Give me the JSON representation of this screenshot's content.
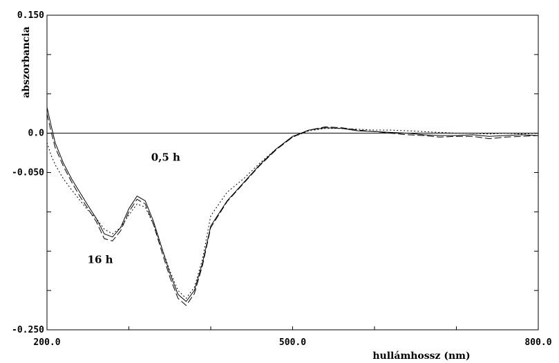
{
  "chart_data": {
    "type": "line",
    "xlabel": "hullámhossz (nm)",
    "ylabel": "abszorbancia",
    "xlim": [
      200,
      800
    ],
    "ylim": [
      -0.25,
      0.15
    ],
    "grid": false,
    "x_tick_labels": [
      {
        "value": 200,
        "label": "200.0"
      },
      {
        "value": 500,
        "label": "500.0"
      },
      {
        "value": 800,
        "label": "800.0"
      }
    ],
    "y_tick_labels": [
      {
        "value": 0.15,
        "label": "0.150"
      },
      {
        "value": 0.0,
        "label": "0.0"
      },
      {
        "value": -0.05,
        "label": "-0.050"
      },
      {
        "value": -0.25,
        "label": "-0.250"
      }
    ],
    "annotations": [
      {
        "text": "0,5 h",
        "x": 345,
        "y": -0.035
      },
      {
        "text": "16 h",
        "x": 265,
        "y": -0.165
      }
    ],
    "series": [
      {
        "style": "dotted",
        "x": [
          200,
          205,
          210,
          220,
          230,
          240,
          250,
          260,
          270,
          280,
          290,
          300,
          310,
          320,
          330,
          340,
          350,
          360,
          370,
          380,
          390,
          400,
          420,
          440,
          460,
          480,
          500,
          520,
          540,
          560,
          580,
          600,
          620,
          640,
          660,
          680,
          700,
          720,
          740,
          760,
          780,
          800
        ],
        "y": [
          -0.012,
          -0.028,
          -0.04,
          -0.058,
          -0.072,
          -0.085,
          -0.098,
          -0.108,
          -0.122,
          -0.128,
          -0.12,
          -0.104,
          -0.09,
          -0.094,
          -0.116,
          -0.145,
          -0.175,
          -0.2,
          -0.21,
          -0.196,
          -0.16,
          -0.105,
          -0.075,
          -0.058,
          -0.038,
          -0.02,
          -0.005,
          0.003,
          0.006,
          0.006,
          0.005,
          0.004,
          0.004,
          0.003,
          0.002,
          0.001,
          0.0,
          0.0,
          -0.001,
          0.0,
          -0.001,
          0.0
        ]
      },
      {
        "style": "solid",
        "x": [
          200,
          205,
          210,
          220,
          230,
          240,
          250,
          260,
          270,
          280,
          290,
          300,
          310,
          320,
          330,
          340,
          350,
          360,
          370,
          380,
          390,
          400,
          420,
          440,
          460,
          480,
          500,
          520,
          540,
          560,
          580,
          600,
          620,
          640,
          660,
          680,
          700,
          720,
          740,
          760,
          780,
          800
        ],
        "y": [
          0.033,
          0.01,
          -0.012,
          -0.038,
          -0.058,
          -0.075,
          -0.092,
          -0.108,
          -0.128,
          -0.132,
          -0.12,
          -0.096,
          -0.08,
          -0.086,
          -0.112,
          -0.145,
          -0.178,
          -0.205,
          -0.214,
          -0.2,
          -0.165,
          -0.118,
          -0.086,
          -0.063,
          -0.04,
          -0.02,
          -0.004,
          0.004,
          0.007,
          0.006,
          0.003,
          0.002,
          0.001,
          0.0,
          -0.002,
          -0.003,
          -0.003,
          -0.002,
          -0.004,
          -0.003,
          -0.002,
          -0.003
        ]
      },
      {
        "style": "dashed",
        "x": [
          200,
          205,
          210,
          220,
          230,
          240,
          250,
          260,
          270,
          280,
          290,
          300,
          310,
          320,
          330,
          340,
          350,
          360,
          370,
          380,
          390,
          400,
          420,
          440,
          460,
          480,
          500,
          520,
          540,
          560,
          580,
          600,
          620,
          640,
          660,
          680,
          700,
          720,
          740,
          760,
          780,
          800
        ],
        "y": [
          0.025,
          0.002,
          -0.018,
          -0.042,
          -0.062,
          -0.08,
          -0.096,
          -0.112,
          -0.134,
          -0.137,
          -0.124,
          -0.1,
          -0.084,
          -0.09,
          -0.116,
          -0.15,
          -0.183,
          -0.21,
          -0.219,
          -0.204,
          -0.168,
          -0.12,
          -0.087,
          -0.064,
          -0.041,
          -0.021,
          -0.005,
          0.004,
          0.008,
          0.007,
          0.004,
          0.002,
          0.0,
          -0.002,
          -0.003,
          -0.005,
          -0.004,
          -0.004,
          -0.007,
          -0.005,
          -0.004,
          -0.003
        ]
      }
    ]
  }
}
